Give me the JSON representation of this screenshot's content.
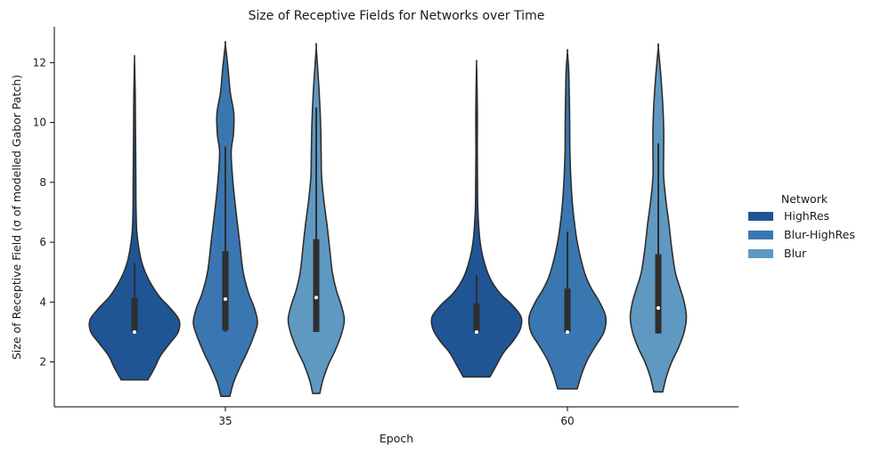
{
  "chart_data": {
    "type": "violin",
    "title": "Size of Receptive Fields for Networks over Time",
    "xlabel": "Epoch",
    "ylabel": "Size of Receptive Field (σ of modelled Gabor Patch)",
    "ylim": [
      0.5,
      13.2
    ],
    "yticks": [
      2,
      4,
      6,
      8,
      10,
      12
    ],
    "categories": [
      "35",
      "60"
    ],
    "legend": {
      "title": "Network",
      "position": "right"
    },
    "grid": false,
    "series": [
      {
        "name": "HighRes",
        "color": "#1f5595",
        "groups": [
          {
            "min": 1.4,
            "q1": 3.0,
            "median": 3.0,
            "q3": 4.15,
            "whisker_low": 3.0,
            "whisker_high": 5.3,
            "max": 12.1,
            "density": [
              [
                1.4,
                0.3
              ],
              [
                1.8,
                0.45
              ],
              [
                2.2,
                0.58
              ],
              [
                2.6,
                0.78
              ],
              [
                3.0,
                0.98
              ],
              [
                3.4,
                1.0
              ],
              [
                3.8,
                0.8
              ],
              [
                4.2,
                0.55
              ],
              [
                4.8,
                0.3
              ],
              [
                5.4,
                0.15
              ],
              [
                6.2,
                0.06
              ],
              [
                7.0,
                0.035
              ],
              [
                8.0,
                0.03
              ],
              [
                9.0,
                0.025
              ],
              [
                10.0,
                0.02
              ],
              [
                11.0,
                0.015
              ],
              [
                12.1,
                0.0
              ]
            ]
          },
          {
            "min": 1.5,
            "q1": 3.0,
            "median": 3.0,
            "q3": 3.95,
            "whisker_low": 3.0,
            "whisker_high": 4.9,
            "max": 11.95,
            "density": [
              [
                1.5,
                0.3
              ],
              [
                1.9,
                0.45
              ],
              [
                2.3,
                0.6
              ],
              [
                2.7,
                0.82
              ],
              [
                3.1,
                0.98
              ],
              [
                3.5,
                1.0
              ],
              [
                3.9,
                0.8
              ],
              [
                4.3,
                0.52
              ],
              [
                4.8,
                0.3
              ],
              [
                5.4,
                0.16
              ],
              [
                6.0,
                0.08
              ],
              [
                7.0,
                0.03
              ],
              [
                8.0,
                0.02
              ],
              [
                9.0,
                0.015
              ],
              [
                10.0,
                0.018
              ],
              [
                11.0,
                0.012
              ],
              [
                11.95,
                0.0
              ]
            ]
          }
        ]
      },
      {
        "name": "Blur-HighRes",
        "color": "#3a77b0",
        "groups": [
          {
            "min": 0.85,
            "q1": 3.05,
            "median": 4.1,
            "q3": 5.7,
            "whisker_low": 3.0,
            "whisker_high": 9.2,
            "max": 12.6,
            "density": [
              [
                0.85,
                0.1
              ],
              [
                1.3,
                0.18
              ],
              [
                1.8,
                0.32
              ],
              [
                2.3,
                0.48
              ],
              [
                2.8,
                0.62
              ],
              [
                3.3,
                0.72
              ],
              [
                3.8,
                0.65
              ],
              [
                4.3,
                0.52
              ],
              [
                5.0,
                0.4
              ],
              [
                6.0,
                0.32
              ],
              [
                7.0,
                0.24
              ],
              [
                8.0,
                0.17
              ],
              [
                9.0,
                0.13
              ],
              [
                9.6,
                0.18
              ],
              [
                10.3,
                0.19
              ],
              [
                11.0,
                0.11
              ],
              [
                11.8,
                0.06
              ],
              [
                12.6,
                0.0
              ]
            ]
          },
          {
            "min": 1.1,
            "q1": 3.0,
            "median": 3.0,
            "q3": 4.45,
            "whisker_low": 3.0,
            "whisker_high": 6.35,
            "max": 12.35,
            "density": [
              [
                1.1,
                0.22
              ],
              [
                1.6,
                0.32
              ],
              [
                2.1,
                0.46
              ],
              [
                2.6,
                0.66
              ],
              [
                3.0,
                0.82
              ],
              [
                3.5,
                0.86
              ],
              [
                4.0,
                0.72
              ],
              [
                4.5,
                0.52
              ],
              [
                5.0,
                0.38
              ],
              [
                6.0,
                0.22
              ],
              [
                7.0,
                0.13
              ],
              [
                8.0,
                0.08
              ],
              [
                9.0,
                0.055
              ],
              [
                10.0,
                0.05
              ],
              [
                11.0,
                0.04
              ],
              [
                11.7,
                0.03
              ],
              [
                12.35,
                0.0
              ]
            ]
          }
        ]
      },
      {
        "name": "Blur",
        "color": "#5f99c2",
        "groups": [
          {
            "min": 0.95,
            "q1": 3.0,
            "median": 4.15,
            "q3": 6.1,
            "whisker_low": 3.0,
            "whisker_high": 10.5,
            "max": 12.5,
            "density": [
              [
                0.95,
                0.08
              ],
              [
                1.4,
                0.15
              ],
              [
                1.9,
                0.27
              ],
              [
                2.4,
                0.43
              ],
              [
                2.9,
                0.56
              ],
              [
                3.4,
                0.63
              ],
              [
                3.9,
                0.56
              ],
              [
                4.4,
                0.45
              ],
              [
                5.0,
                0.36
              ],
              [
                5.8,
                0.3
              ],
              [
                6.6,
                0.24
              ],
              [
                7.4,
                0.17
              ],
              [
                8.2,
                0.12
              ],
              [
                9.0,
                0.11
              ],
              [
                9.8,
                0.1
              ],
              [
                10.6,
                0.08
              ],
              [
                11.4,
                0.05
              ],
              [
                12.5,
                0.0
              ]
            ]
          },
          {
            "min": 1.0,
            "q1": 2.95,
            "median": 3.8,
            "q3": 5.6,
            "whisker_low": 2.95,
            "whisker_high": 9.3,
            "max": 12.5,
            "density": [
              [
                1.0,
                0.1
              ],
              [
                1.5,
                0.18
              ],
              [
                2.0,
                0.3
              ],
              [
                2.5,
                0.46
              ],
              [
                3.0,
                0.58
              ],
              [
                3.5,
                0.63
              ],
              [
                4.0,
                0.58
              ],
              [
                4.5,
                0.48
              ],
              [
                5.0,
                0.38
              ],
              [
                5.8,
                0.3
              ],
              [
                6.6,
                0.24
              ],
              [
                7.4,
                0.17
              ],
              [
                8.2,
                0.12
              ],
              [
                9.0,
                0.12
              ],
              [
                9.8,
                0.12
              ],
              [
                10.6,
                0.1
              ],
              [
                11.5,
                0.06
              ],
              [
                12.5,
                0.0
              ]
            ]
          }
        ]
      }
    ]
  }
}
